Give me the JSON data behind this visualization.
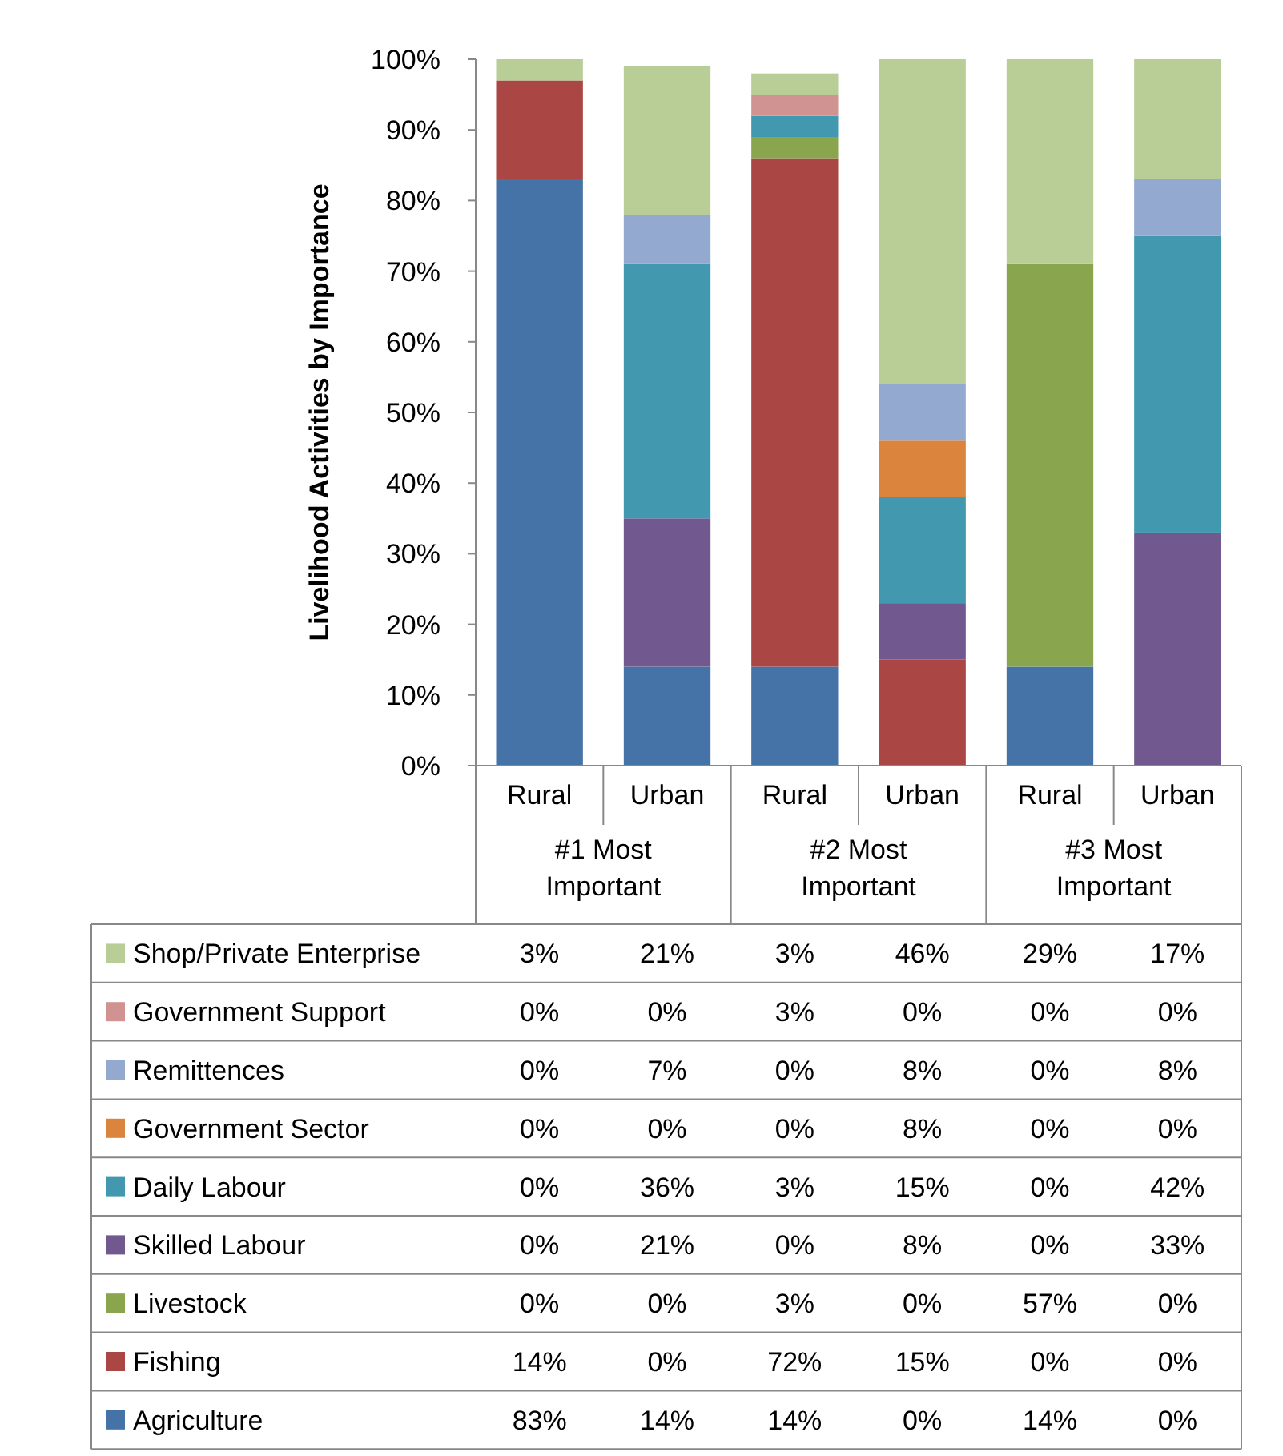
{
  "chart_data": {
    "type": "bar",
    "stacked": true,
    "ylabel": "Livelihood Activities by Importance",
    "categories": [
      "Rural",
      "Urban",
      "Rural",
      "Urban",
      "Rural",
      "Urban"
    ],
    "annotations": [
      "#1 Most Important",
      "#2 Most Important",
      "#3 Most Important"
    ],
    "ylim": [
      0,
      100
    ],
    "yticks": [
      {
        "value": 0,
        "label": "0%"
      },
      {
        "value": 10,
        "label": "10%"
      },
      {
        "value": 20,
        "label": "20%"
      },
      {
        "value": 30,
        "label": "30%"
      },
      {
        "value": 40,
        "label": "40%"
      },
      {
        "value": 50,
        "label": "50%"
      },
      {
        "value": 60,
        "label": "60%"
      },
      {
        "value": 70,
        "label": "70%"
      },
      {
        "value": 80,
        "label": "80%"
      },
      {
        "value": 90,
        "label": "90%"
      },
      {
        "value": 100,
        "label": "100%"
      }
    ],
    "legend": "bottom",
    "series": [
      {
        "name": "Agriculture",
        "color": "#4572a7",
        "values": [
          83,
          14,
          14,
          0,
          14,
          0
        ],
        "value_labels": [
          "83%",
          "14%",
          "14%",
          "0%",
          "14%",
          "0%"
        ]
      },
      {
        "name": "Fishing",
        "color": "#aa4643",
        "values": [
          14,
          0,
          72,
          15,
          0,
          0
        ],
        "value_labels": [
          "14%",
          "0%",
          "72%",
          "15%",
          "0%",
          "0%"
        ]
      },
      {
        "name": "Livestock",
        "color": "#89a54e",
        "values": [
          0,
          0,
          3,
          0,
          57,
          0
        ],
        "value_labels": [
          "0%",
          "0%",
          "3%",
          "0%",
          "57%",
          "0%"
        ]
      },
      {
        "name": "Skilled Labour",
        "color": "#71588f",
        "values": [
          0,
          21,
          0,
          8,
          0,
          33
        ],
        "value_labels": [
          "0%",
          "21%",
          "0%",
          "8%",
          "0%",
          "33%"
        ]
      },
      {
        "name": "Daily Labour",
        "color": "#4198af",
        "values": [
          0,
          36,
          3,
          15,
          0,
          42
        ],
        "value_labels": [
          "0%",
          "36%",
          "3%",
          "15%",
          "0%",
          "42%"
        ]
      },
      {
        "name": "Government Sector",
        "color": "#db843d",
        "values": [
          0,
          0,
          0,
          8,
          0,
          0
        ],
        "value_labels": [
          "0%",
          "0%",
          "0%",
          "8%",
          "0%",
          "0%"
        ]
      },
      {
        "name": "Remittences",
        "color": "#93a9cf",
        "values": [
          0,
          7,
          0,
          8,
          0,
          8
        ],
        "value_labels": [
          "0%",
          "7%",
          "0%",
          "8%",
          "0%",
          "8%"
        ]
      },
      {
        "name": "Government Support",
        "color": "#d19392",
        "values": [
          0,
          0,
          3,
          0,
          0,
          0
        ],
        "value_labels": [
          "0%",
          "0%",
          "3%",
          "0%",
          "0%",
          "0%"
        ]
      },
      {
        "name": "Shop/Private Enterprise",
        "color": "#b9cd96",
        "values": [
          3,
          21,
          3,
          46,
          29,
          17
        ],
        "value_labels": [
          "3%",
          "21%",
          "3%",
          "46%",
          "29%",
          "17%"
        ]
      }
    ]
  }
}
